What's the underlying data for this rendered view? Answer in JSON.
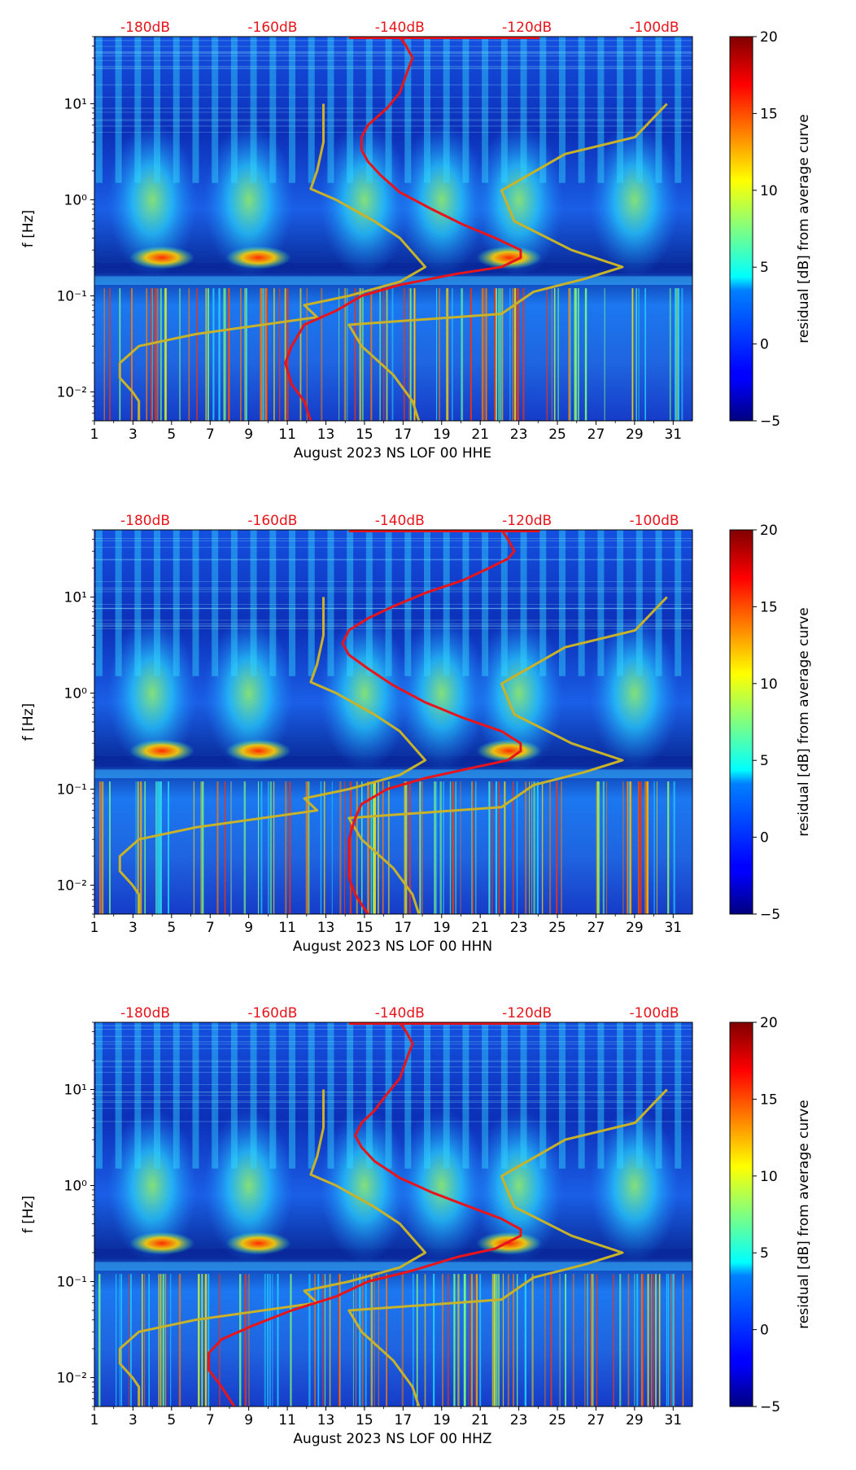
{
  "colorbar": {
    "label": "residual [dB] from average curve",
    "ticks": [
      -5,
      0,
      5,
      10,
      15,
      20
    ],
    "range": [
      -5,
      20
    ],
    "colormap": "jet"
  },
  "colors": {
    "top_axis_label": "#e8141b",
    "psd_curve": "#e8141b",
    "noise_model": "#c8b22a",
    "background_field": "#1034c8"
  },
  "chart_data": [
    {
      "type": "heatmap",
      "title": "",
      "xlabel": "August 2023 NS LOF 00 HHE",
      "ylabel": "f [Hz]",
      "x_ticks": [
        "1",
        "3",
        "5",
        "7",
        "9",
        "11",
        "13",
        "15",
        "17",
        "19",
        "21",
        "23",
        "25",
        "27",
        "29",
        "31"
      ],
      "xlim": [
        1,
        32
      ],
      "y_ticks": [
        "10⁻²",
        "10⁻¹",
        "10⁰",
        "10¹"
      ],
      "ylim": [
        0.005,
        50
      ],
      "y_scale": "log",
      "top_axis_ticks": [
        "-180dB",
        "-160dB",
        "-140dB",
        "-120dB",
        "-100dB"
      ],
      "top_axis_values": [
        -180,
        -160,
        -140,
        -120,
        -100
      ],
      "psd_curve": [
        [
          -154,
          0.005
        ],
        [
          -155,
          0.008
        ],
        [
          -157,
          0.012
        ],
        [
          -158,
          0.02
        ],
        [
          -157,
          0.03
        ],
        [
          -155,
          0.05
        ],
        [
          -150,
          0.07
        ],
        [
          -146,
          0.1
        ],
        [
          -140,
          0.13
        ],
        [
          -131,
          0.17
        ],
        [
          -124,
          0.2
        ],
        [
          -121,
          0.25
        ],
        [
          -121,
          0.3
        ],
        [
          -125,
          0.4
        ],
        [
          -130,
          0.55
        ],
        [
          -135,
          0.8
        ],
        [
          -140,
          1.2
        ],
        [
          -143,
          1.8
        ],
        [
          -145,
          2.5
        ],
        [
          -146,
          3.3
        ],
        [
          -146,
          4.5
        ],
        [
          -145,
          6
        ],
        [
          -142,
          9
        ],
        [
          -140,
          13
        ],
        [
          -139,
          20
        ],
        [
          -138,
          30
        ],
        [
          -139,
          40
        ],
        [
          -140,
          50
        ]
      ],
      "high_noise_model": [
        [
          -152,
          10
        ],
        [
          -152,
          4
        ],
        [
          -153,
          2
        ],
        [
          -154,
          1.3
        ],
        [
          -150,
          1
        ],
        [
          -144,
          0.6
        ],
        [
          -140,
          0.4
        ],
        [
          -136,
          0.2
        ],
        [
          -140,
          0.14
        ],
        [
          -148,
          0.1
        ],
        [
          -155,
          0.08
        ],
        [
          -153,
          0.06
        ],
        [
          -172,
          0.04
        ],
        [
          -181,
          0.03
        ],
        [
          -184,
          0.02
        ],
        [
          -184,
          0.014
        ],
        [
          -182,
          0.01
        ],
        [
          -181,
          0.008
        ],
        [
          -181,
          0.005
        ]
      ],
      "low_noise_model": [
        [
          -137,
          0.005
        ],
        [
          -138,
          0.008
        ],
        [
          -141,
          0.015
        ],
        [
          -146,
          0.03
        ],
        [
          -148,
          0.05
        ],
        [
          -124,
          0.065
        ],
        [
          -119,
          0.11
        ],
        [
          -111,
          0.15
        ],
        [
          -105,
          0.2
        ],
        [
          -113,
          0.3
        ],
        [
          -122,
          0.6
        ],
        [
          -124,
          1.25
        ],
        [
          -114,
          3
        ],
        [
          -103,
          4.5
        ],
        [
          -98,
          10
        ]
      ]
    },
    {
      "type": "heatmap",
      "title": "",
      "xlabel": "August 2023 NS LOF 00 HHN",
      "ylabel": "f [Hz]",
      "x_ticks": [
        "1",
        "3",
        "5",
        "7",
        "9",
        "11",
        "13",
        "15",
        "17",
        "19",
        "21",
        "23",
        "25",
        "27",
        "29",
        "31"
      ],
      "xlim": [
        1,
        32
      ],
      "y_ticks": [
        "10⁻²",
        "10⁻¹",
        "10⁰",
        "10¹"
      ],
      "ylim": [
        0.005,
        50
      ],
      "y_scale": "log",
      "top_axis_ticks": [
        "-180dB",
        "-160dB",
        "-140dB",
        "-120dB",
        "-100dB"
      ],
      "top_axis_values": [
        -180,
        -160,
        -140,
        -120,
        -100
      ],
      "psd_curve": [
        [
          -145,
          0.005
        ],
        [
          -147,
          0.008
        ],
        [
          -148,
          0.012
        ],
        [
          -148,
          0.02
        ],
        [
          -148,
          0.03
        ],
        [
          -147,
          0.05
        ],
        [
          -146,
          0.07
        ],
        [
          -142,
          0.1
        ],
        [
          -136,
          0.13
        ],
        [
          -128,
          0.17
        ],
        [
          -123,
          0.2
        ],
        [
          -121,
          0.25
        ],
        [
          -121,
          0.3
        ],
        [
          -124,
          0.4
        ],
        [
          -130,
          0.55
        ],
        [
          -136,
          0.8
        ],
        [
          -141,
          1.2
        ],
        [
          -145,
          1.8
        ],
        [
          -148,
          2.5
        ],
        [
          -149,
          3.3
        ],
        [
          -148,
          4.5
        ],
        [
          -145,
          6
        ],
        [
          -141,
          8
        ],
        [
          -136,
          11
        ],
        [
          -130,
          15
        ],
        [
          -126,
          20
        ],
        [
          -123,
          25
        ],
        [
          -122,
          30
        ],
        [
          -123,
          40
        ],
        [
          -124,
          50
        ]
      ],
      "high_noise_model": [
        [
          -152,
          10
        ],
        [
          -152,
          4
        ],
        [
          -153,
          2
        ],
        [
          -154,
          1.3
        ],
        [
          -150,
          1
        ],
        [
          -144,
          0.6
        ],
        [
          -140,
          0.4
        ],
        [
          -136,
          0.2
        ],
        [
          -140,
          0.14
        ],
        [
          -148,
          0.1
        ],
        [
          -155,
          0.08
        ],
        [
          -153,
          0.06
        ],
        [
          -172,
          0.04
        ],
        [
          -181,
          0.03
        ],
        [
          -184,
          0.02
        ],
        [
          -184,
          0.014
        ],
        [
          -182,
          0.01
        ],
        [
          -181,
          0.008
        ],
        [
          -181,
          0.005
        ]
      ],
      "low_noise_model": [
        [
          -137,
          0.005
        ],
        [
          -138,
          0.008
        ],
        [
          -141,
          0.015
        ],
        [
          -146,
          0.03
        ],
        [
          -148,
          0.05
        ],
        [
          -124,
          0.065
        ],
        [
          -119,
          0.11
        ],
        [
          -111,
          0.15
        ],
        [
          -105,
          0.2
        ],
        [
          -113,
          0.3
        ],
        [
          -122,
          0.6
        ],
        [
          -124,
          1.25
        ],
        [
          -114,
          3
        ],
        [
          -103,
          4.5
        ],
        [
          -98,
          10
        ]
      ]
    },
    {
      "type": "heatmap",
      "title": "",
      "xlabel": "August 2023 NS LOF 00 HHZ",
      "ylabel": "f [Hz]",
      "x_ticks": [
        "1",
        "3",
        "5",
        "7",
        "9",
        "11",
        "13",
        "15",
        "17",
        "19",
        "21",
        "23",
        "25",
        "27",
        "29",
        "31"
      ],
      "xlim": [
        1,
        32
      ],
      "y_ticks": [
        "10⁻²",
        "10⁻¹",
        "10⁰",
        "10¹"
      ],
      "ylim": [
        0.005,
        50
      ],
      "y_scale": "log",
      "top_axis_ticks": [
        "-180dB",
        "-160dB",
        "-140dB",
        "-120dB",
        "-100dB"
      ],
      "top_axis_values": [
        -180,
        -160,
        -140,
        -120,
        -100
      ],
      "psd_curve": [
        [
          -166,
          0.005
        ],
        [
          -168,
          0.008
        ],
        [
          -170,
          0.012
        ],
        [
          -170,
          0.018
        ],
        [
          -168,
          0.025
        ],
        [
          -163,
          0.035
        ],
        [
          -157,
          0.05
        ],
        [
          -150,
          0.07
        ],
        [
          -145,
          0.1
        ],
        [
          -138,
          0.13
        ],
        [
          -131,
          0.18
        ],
        [
          -125,
          0.22
        ],
        [
          -121,
          0.3
        ],
        [
          -121,
          0.35
        ],
        [
          -124,
          0.45
        ],
        [
          -129,
          0.6
        ],
        [
          -135,
          0.85
        ],
        [
          -140,
          1.2
        ],
        [
          -144,
          1.8
        ],
        [
          -146,
          2.5
        ],
        [
          -147,
          3.3
        ],
        [
          -146,
          4.5
        ],
        [
          -144,
          6
        ],
        [
          -142,
          9
        ],
        [
          -140,
          13
        ],
        [
          -139,
          20
        ],
        [
          -138,
          30
        ],
        [
          -139,
          40
        ],
        [
          -140,
          50
        ]
      ],
      "high_noise_model": [
        [
          -152,
          10
        ],
        [
          -152,
          4
        ],
        [
          -153,
          2
        ],
        [
          -154,
          1.3
        ],
        [
          -150,
          1
        ],
        [
          -144,
          0.6
        ],
        [
          -140,
          0.4
        ],
        [
          -136,
          0.2
        ],
        [
          -140,
          0.14
        ],
        [
          -148,
          0.1
        ],
        [
          -155,
          0.08
        ],
        [
          -153,
          0.06
        ],
        [
          -172,
          0.04
        ],
        [
          -181,
          0.03
        ],
        [
          -184,
          0.02
        ],
        [
          -184,
          0.014
        ],
        [
          -182,
          0.01
        ],
        [
          -181,
          0.008
        ],
        [
          -181,
          0.005
        ]
      ],
      "low_noise_model": [
        [
          -137,
          0.005
        ],
        [
          -138,
          0.008
        ],
        [
          -141,
          0.015
        ],
        [
          -146,
          0.03
        ],
        [
          -148,
          0.05
        ],
        [
          -124,
          0.065
        ],
        [
          -119,
          0.11
        ],
        [
          -111,
          0.15
        ],
        [
          -105,
          0.2
        ],
        [
          -113,
          0.3
        ],
        [
          -122,
          0.6
        ],
        [
          -124,
          1.25
        ],
        [
          -114,
          3
        ],
        [
          -103,
          4.5
        ],
        [
          -98,
          10
        ]
      ]
    }
  ]
}
